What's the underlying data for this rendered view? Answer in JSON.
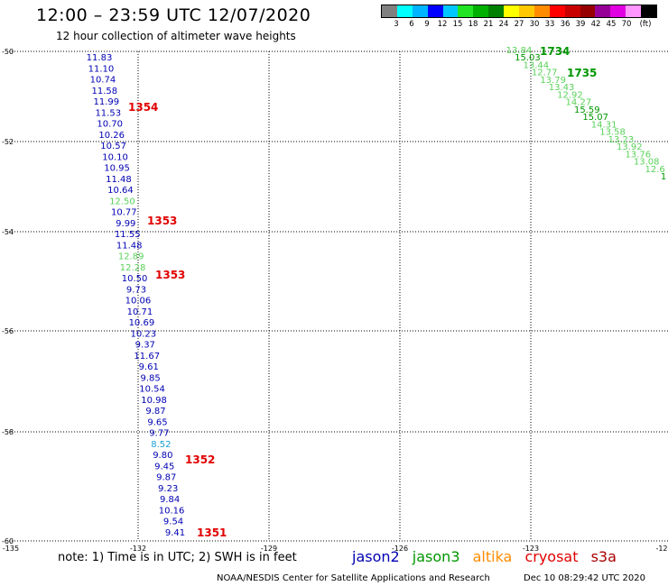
{
  "title": "12:00 – 23:59 UTC 12/07/2020",
  "subtitle": "12 hour collection of altimeter wave heights",
  "legend": {
    "unit_label": "(ft)",
    "colors": [
      "#808080",
      "#00ffff",
      "#00b4ff",
      "#0000ff",
      "#00c8ff",
      "#22e422",
      "#00b000",
      "#008000",
      "#ffff00",
      "#ffc800",
      "#ff8c00",
      "#ff0000",
      "#c80000",
      "#960000",
      "#960096",
      "#e100e1",
      "#ff96ff",
      "#000000"
    ],
    "labels": [
      "3",
      "6",
      "9",
      "12",
      "15",
      "18",
      "21",
      "24",
      "27",
      "30",
      "33",
      "36",
      "39",
      "42",
      "45",
      "70"
    ]
  },
  "axes": {
    "x_ticks": [
      "-135",
      "-132",
      "-129",
      "-126",
      "-123",
      "-12"
    ],
    "y_ticks": [
      "-50",
      "-52",
      "-54",
      "-56",
      "-58",
      "-60"
    ]
  },
  "series_colors": {
    "jason2": "#0000b4",
    "jason3": "#009600",
    "altika": "#ff8c00",
    "cryosat": "#e10000",
    "s3a": "#aa0000",
    "light_green": "#5ad25a",
    "cyan": "#19a0d2"
  },
  "left_track": [
    {
      "v": "11.83",
      "c": "jason2"
    },
    {
      "v": "11.10",
      "c": "jason2"
    },
    {
      "v": "10.74",
      "c": "jason2"
    },
    {
      "v": "11.58",
      "c": "jason2"
    },
    {
      "v": "11.99",
      "c": "jason2"
    },
    {
      "v": "11.53",
      "c": "jason2"
    },
    {
      "v": "10.70",
      "c": "jason2"
    },
    {
      "v": "10.26",
      "c": "jason2"
    },
    {
      "v": "10.57",
      "c": "jason2"
    },
    {
      "v": "10.10",
      "c": "jason2"
    },
    {
      "v": "10.95",
      "c": "jason2"
    },
    {
      "v": "11.48",
      "c": "jason2"
    },
    {
      "v": "10.64",
      "c": "jason2"
    },
    {
      "v": "12.50",
      "c": "light_green"
    },
    {
      "v": "10.77",
      "c": "jason2"
    },
    {
      "v": "9.99",
      "c": "jason2"
    },
    {
      "v": "11.55",
      "c": "jason2"
    },
    {
      "v": "11.48",
      "c": "jason2"
    },
    {
      "v": "12.89",
      "c": "light_green"
    },
    {
      "v": "12.28",
      "c": "light_green"
    },
    {
      "v": "10.50",
      "c": "jason2"
    },
    {
      "v": "9.73",
      "c": "jason2"
    },
    {
      "v": "10.06",
      "c": "jason2"
    },
    {
      "v": "10.71",
      "c": "jason2"
    },
    {
      "v": "10.69",
      "c": "jason2"
    },
    {
      "v": "10.23",
      "c": "jason2"
    },
    {
      "v": "9.37",
      "c": "jason2"
    },
    {
      "v": "11.67",
      "c": "jason2"
    },
    {
      "v": "9.61",
      "c": "jason2"
    },
    {
      "v": "9.85",
      "c": "jason2"
    },
    {
      "v": "10.54",
      "c": "jason2"
    },
    {
      "v": "10.98",
      "c": "jason2"
    },
    {
      "v": "9.87",
      "c": "jason2"
    },
    {
      "v": "9.65",
      "c": "jason2"
    },
    {
      "v": "9.77",
      "c": "jason2"
    },
    {
      "v": "8.52",
      "c": "cyan"
    },
    {
      "v": "9.80",
      "c": "jason2"
    },
    {
      "v": "9.45",
      "c": "jason2"
    },
    {
      "v": "9.87",
      "c": "jason2"
    },
    {
      "v": "9.23",
      "c": "jason2"
    },
    {
      "v": "9.84",
      "c": "jason2"
    },
    {
      "v": "10.16",
      "c": "jason2"
    },
    {
      "v": "9.54",
      "c": "jason2"
    },
    {
      "v": "9.41",
      "c": "jason2"
    }
  ],
  "left_times": [
    "1354",
    "1353",
    "1353",
    "1352",
    "1351"
  ],
  "right_track": [
    {
      "v": "13.84",
      "c": "light_green"
    },
    {
      "v": "15.03",
      "c": "jason3"
    },
    {
      "v": "13.44",
      "c": "light_green"
    },
    {
      "v": "12.77",
      "c": "light_green"
    },
    {
      "v": "13.79",
      "c": "light_green"
    },
    {
      "v": "13.43",
      "c": "light_green"
    },
    {
      "v": "12.92",
      "c": "light_green"
    },
    {
      "v": "14.27",
      "c": "light_green"
    },
    {
      "v": "15.59",
      "c": "jason3"
    },
    {
      "v": "15.07",
      "c": "jason3"
    },
    {
      "v": "14.31",
      "c": "light_green"
    },
    {
      "v": "13.58",
      "c": "light_green"
    },
    {
      "v": "13.23",
      "c": "light_green"
    },
    {
      "v": "13.92",
      "c": "light_green"
    },
    {
      "v": "13.76",
      "c": "light_green"
    },
    {
      "v": "13.08",
      "c": "light_green"
    },
    {
      "v": "12.6",
      "c": "light_green"
    },
    {
      "v": "1",
      "c": "jason3"
    }
  ],
  "right_times": [
    "1734",
    "1735"
  ],
  "note": "note: 1) Time is in UTC; 2) SWH is in feet",
  "satellites": [
    "jason2",
    "jason3",
    "altika",
    "cryosat",
    "s3a"
  ],
  "credit": "NOAA/NESDIS Center for Satellite Applications and Research",
  "timestamp": "Dec 10 08:29:42 UTC 2020"
}
